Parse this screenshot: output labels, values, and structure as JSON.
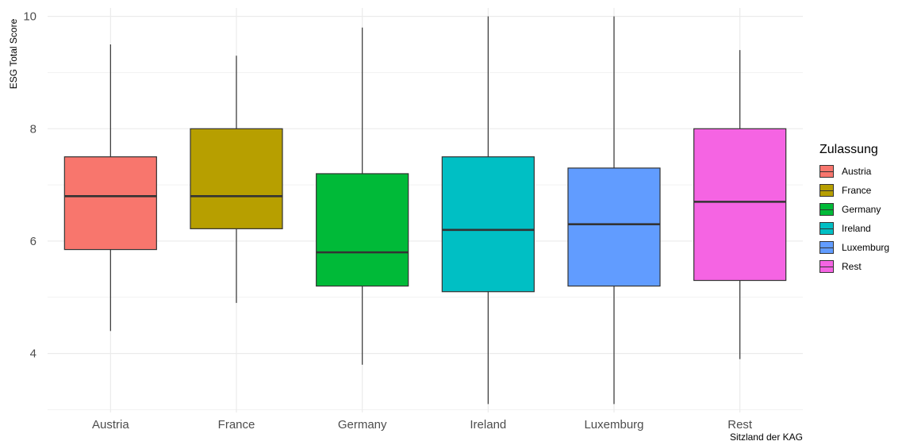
{
  "chart_data": {
    "type": "boxplot",
    "xlabel": "Sitzland der KAG",
    "ylabel": "ESG Total Score",
    "ylim": [
      2.95,
      10.15
    ],
    "yticks": [
      4,
      6,
      8,
      10
    ],
    "grid": true,
    "legend": {
      "title": "Zulassung",
      "position": "right"
    },
    "categories": [
      "Austria",
      "France",
      "Germany",
      "Ireland",
      "Luxemburg",
      "Rest"
    ],
    "boxes": [
      {
        "name": "Austria",
        "color": "#F8766D",
        "min": 4.4,
        "q1": 5.85,
        "median": 6.8,
        "q3": 7.5,
        "max": 9.5
      },
      {
        "name": "France",
        "color": "#B79F00",
        "min": 4.9,
        "q1": 6.22,
        "median": 6.8,
        "q3": 8.0,
        "max": 9.3
      },
      {
        "name": "Germany",
        "color": "#00BA38",
        "min": 3.8,
        "q1": 5.2,
        "median": 5.8,
        "q3": 7.2,
        "max": 9.8
      },
      {
        "name": "Ireland",
        "color": "#00BFC4",
        "min": 3.1,
        "q1": 5.1,
        "median": 6.2,
        "q3": 7.5,
        "max": 10.0
      },
      {
        "name": "Luxemburg",
        "color": "#619CFF",
        "min": 3.1,
        "q1": 5.2,
        "median": 6.3,
        "q3": 7.3,
        "max": 10.0
      },
      {
        "name": "Rest",
        "color": "#F564E3",
        "min": 3.9,
        "q1": 5.3,
        "median": 6.7,
        "q3": 8.0,
        "max": 9.4
      }
    ]
  }
}
